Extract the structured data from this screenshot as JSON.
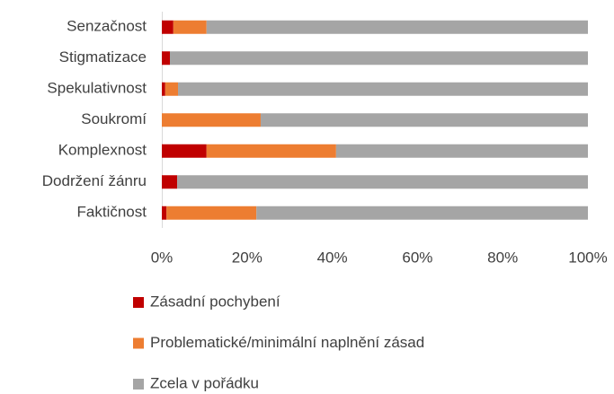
{
  "chart_data": {
    "type": "stacked_bar_horizontal",
    "categories": [
      "Senzačnost",
      "Stigmatizace",
      "Spekulativnost",
      "Soukromí",
      "Komplexnost",
      "Dodržení žánru",
      "Faktičnost"
    ],
    "series": [
      {
        "name": "Zásadní pochybení",
        "color": "#c00000",
        "values": [
          2.7,
          1.9,
          0.8,
          0,
          10.5,
          3.6,
          1.1
        ]
      },
      {
        "name": "Problematické/minimální naplnění zásad",
        "color": "#ed7d31",
        "values": [
          7.8,
          0,
          3.0,
          23.2,
          30.4,
          0,
          21.1
        ]
      },
      {
        "name": "Zcela v pořádku",
        "color": "#a5a5a5",
        "values": [
          89.5,
          98.1,
          96.2,
          76.8,
          59.1,
          96.4,
          77.8
        ]
      }
    ],
    "xlim": [
      0,
      100
    ],
    "xticks": [
      {
        "value": 0,
        "label": "0%"
      },
      {
        "value": 20,
        "label": "20%"
      },
      {
        "value": 40,
        "label": "40%"
      },
      {
        "value": 60,
        "label": "60%"
      },
      {
        "value": 80,
        "label": "80%"
      },
      {
        "value": 100,
        "label": "100%"
      }
    ],
    "grid": false,
    "legend": "bottom"
  }
}
